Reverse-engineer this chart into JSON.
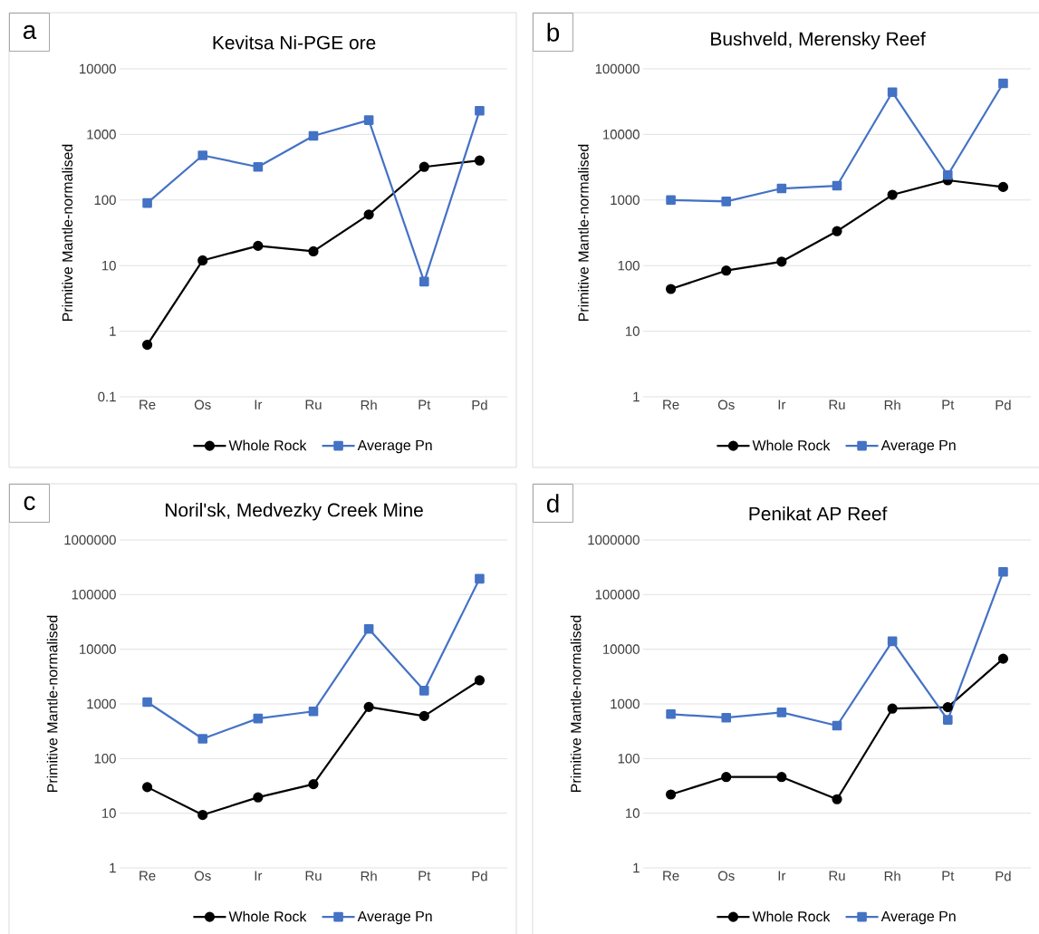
{
  "chart_data": [
    {
      "type": "line",
      "title": "Kevitsa Ni-PGE ore",
      "ylabel": "Primitive Mantle-normalised",
      "annotations": [
        "a"
      ],
      "categories": [
        "Re",
        "Os",
        "Ir",
        "Ru",
        "Rh",
        "Pt",
        "Pd"
      ],
      "log": "y",
      "ylim": [
        0.1,
        10000
      ],
      "yticks": [
        0.1,
        1,
        10,
        100,
        1000,
        10000
      ],
      "grid": "y",
      "legend": "bottom",
      "line_style": "solid",
      "series": [
        {
          "name": "Whole Rock",
          "color": "#000000",
          "marker": "circle",
          "values": [
            0.62,
            12,
            20,
            16.5,
            60,
            320,
            400
          ]
        },
        {
          "name": "Average Pn",
          "color": "#4472c4",
          "marker": "square",
          "values": [
            90,
            480,
            320,
            950,
            1650,
            5.7,
            2300
          ]
        }
      ]
    },
    {
      "type": "line",
      "title": "Bushveld, Merensky Reef",
      "ylabel": "Primitive Mantle-normalised",
      "annotations": [
        "b"
      ],
      "categories": [
        "Re",
        "Os",
        "Ir",
        "Ru",
        "Rh",
        "Pt",
        "Pd"
      ],
      "log": "y",
      "ylim": [
        1,
        100000
      ],
      "yticks": [
        1,
        10,
        100,
        1000,
        10000,
        100000
      ],
      "grid": "y",
      "legend": "bottom",
      "line_style": "solid",
      "series": [
        {
          "name": "Whole Rock",
          "color": "#000000",
          "marker": "circle",
          "values": [
            44,
            84,
            115,
            335,
            1200,
            2000,
            1580
          ]
        },
        {
          "name": "Average Pn",
          "color": "#4472c4",
          "marker": "square",
          "values": [
            1000,
            950,
            1500,
            1650,
            44000,
            2400,
            60000
          ]
        }
      ]
    },
    {
      "type": "line",
      "title": "Noril'sk, Medvezky Creek Mine",
      "ylabel": "Primitive Mantle-normalised",
      "annotations": [
        "c"
      ],
      "categories": [
        "Re",
        "Os",
        "Ir",
        "Ru",
        "Rh",
        "Pt",
        "Pd"
      ],
      "log": "y",
      "ylim": [
        1,
        1000000
      ],
      "yticks": [
        1,
        10,
        100,
        1000,
        10000,
        100000,
        1000000
      ],
      "grid": "y",
      "legend": "bottom",
      "line_style": "solid",
      "series": [
        {
          "name": "Whole Rock",
          "color": "#000000",
          "marker": "circle",
          "values": [
            30,
            9.3,
            19.5,
            34,
            880,
            600,
            2700
          ]
        },
        {
          "name": "Average Pn",
          "color": "#4472c4",
          "marker": "square",
          "values": [
            1080,
            230,
            540,
            730,
            23500,
            1750,
            195000
          ]
        }
      ]
    },
    {
      "type": "line",
      "title": "Penikat AP Reef",
      "ylabel": "Primitive Mantle-normalised",
      "annotations": [
        "d"
      ],
      "categories": [
        "Re",
        "Os",
        "Ir",
        "Ru",
        "Rh",
        "Pt",
        "Pd"
      ],
      "log": "y",
      "ylim": [
        1,
        1000000
      ],
      "yticks": [
        1,
        10,
        100,
        1000,
        10000,
        100000,
        1000000
      ],
      "grid": "y",
      "legend": "bottom",
      "line_style": "solid",
      "series": [
        {
          "name": "Whole Rock",
          "color": "#000000",
          "marker": "circle",
          "values": [
            22,
            46,
            46,
            18,
            820,
            870,
            6700
          ]
        },
        {
          "name": "Average Pn",
          "color": "#4472c4",
          "marker": "square",
          "values": [
            650,
            560,
            700,
            400,
            14000,
            510,
            260000
          ]
        }
      ]
    }
  ]
}
